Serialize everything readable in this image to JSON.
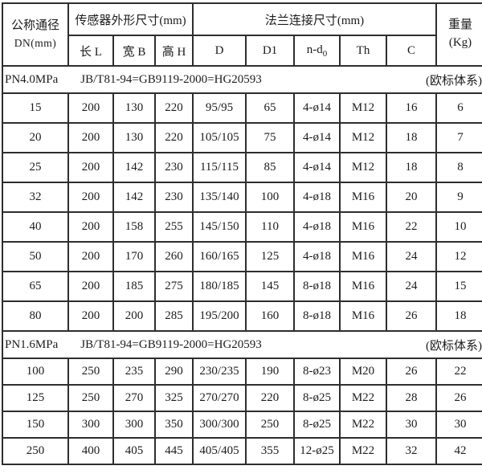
{
  "table": {
    "header": {
      "dn": {
        "line1": "公称通径",
        "line2": "DN(mm)"
      },
      "sensor_group": "传感器外形尺寸(mm)",
      "flange_group": "法兰连接尺寸(mm)",
      "weight": {
        "line1": "重量",
        "line2": "(Kg)"
      },
      "sub_columns": [
        "长 L",
        "宽 B",
        "高 H",
        "D",
        "D1",
        "n-d₀",
        "Th",
        "C"
      ]
    },
    "sections": [
      {
        "pn": "PN4.0MPa",
        "standard": "JB/T81-94=GB9119-2000=HG20593",
        "note": "(欧标体系)",
        "rows": [
          [
            "15",
            "200",
            "130",
            "220",
            "95/95",
            "65",
            "4-ø14",
            "M12",
            "16",
            "6"
          ],
          [
            "20",
            "200",
            "130",
            "220",
            "105/105",
            "75",
            "4-ø14",
            "M12",
            "18",
            "7"
          ],
          [
            "25",
            "200",
            "142",
            "230",
            "115/115",
            "85",
            "4-ø14",
            "M12",
            "18",
            "8"
          ],
          [
            "32",
            "200",
            "142",
            "230",
            "135/140",
            "100",
            "4-ø18",
            "M16",
            "20",
            "9"
          ],
          [
            "40",
            "200",
            "158",
            "255",
            "145/150",
            "110",
            "4-ø18",
            "M16",
            "22",
            "10"
          ],
          [
            "50",
            "200",
            "170",
            "260",
            "160/165",
            "125",
            "4-ø18",
            "M16",
            "24",
            "12"
          ],
          [
            "65",
            "200",
            "185",
            "275",
            "180/185",
            "145",
            "8-ø18",
            "M16",
            "24",
            "15"
          ],
          [
            "80",
            "200",
            "200",
            "285",
            "195/200",
            "160",
            "8-ø18",
            "M16",
            "26",
            "18"
          ]
        ]
      },
      {
        "pn": "PN1.6MPa",
        "standard": "JB/T81-94=GB9119-2000=HG20593",
        "note": "(欧标体系)",
        "rows": [
          [
            "100",
            "250",
            "235",
            "290",
            "230/235",
            "190",
            "8-ø23",
            "M20",
            "26",
            "22"
          ],
          [
            "125",
            "250",
            "270",
            "325",
            "270/270",
            "220",
            "8-ø25",
            "M22",
            "28",
            "26"
          ],
          [
            "150",
            "300",
            "300",
            "350",
            "300/300",
            "250",
            "8-ø25",
            "M22",
            "30",
            "30"
          ],
          [
            "250",
            "400",
            "405",
            "445",
            "405/405",
            "355",
            "12-ø25",
            "M22",
            "32",
            "42"
          ]
        ]
      }
    ]
  }
}
